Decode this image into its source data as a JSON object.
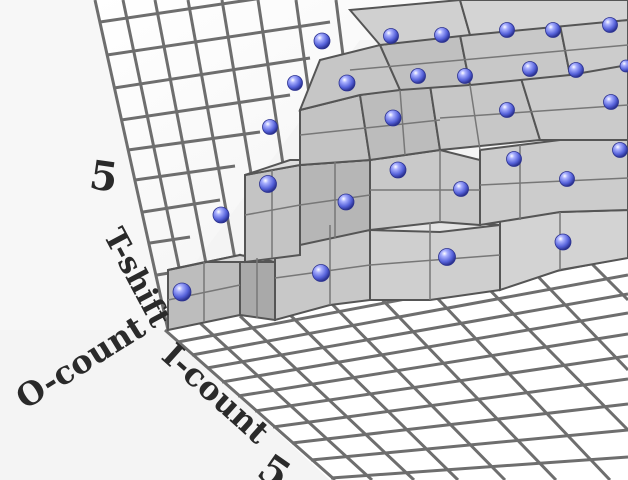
{
  "axes": {
    "vertical": {
      "label": "T-shift",
      "tick": "5"
    },
    "left_depth": {
      "label": "O-count"
    },
    "right_depth": {
      "label": "I-count",
      "tick": "5"
    }
  },
  "style": {
    "grid_line": "#6e6e6e",
    "cube_top": "#d9d9d9",
    "cube_left": "#bdbdbd",
    "cube_right": "#a9a9a9",
    "wall": "#ffffff",
    "sphere": "#6f78e6"
  },
  "spheres_shown": 36
}
